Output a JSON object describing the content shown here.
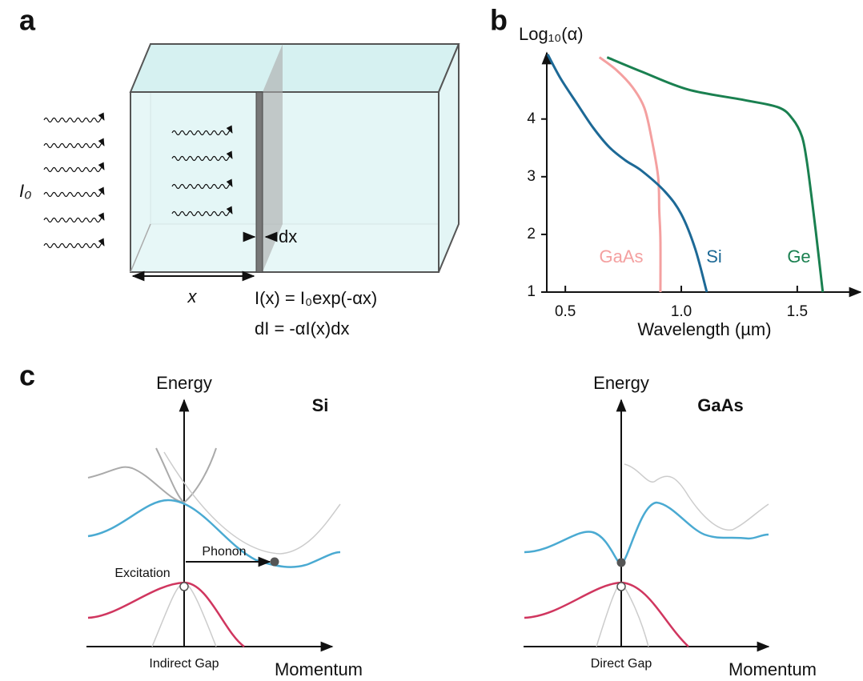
{
  "panel_a": {
    "label": "a",
    "intensity": "I₀",
    "slice": "dx",
    "depth": "x",
    "equations": [
      "I(x) = I₀exp(-αx)",
      "dI = -αI(x)dx"
    ]
  },
  "chart_data": {
    "type": "line",
    "panel_label": "b",
    "xlabel": "Wavelength (µm)",
    "ylabel": "Log₁₀(α)",
    "xlim": [
      0.42,
      1.78
    ],
    "ylim": [
      1,
      5.12
    ],
    "xticks": [
      0.5,
      {
        "value": 1,
        "label": "1.0"
      },
      1.5
    ],
    "yticks": [
      1,
      2,
      3,
      4
    ],
    "series": [
      {
        "name": "GaAs",
        "color": "#f4a0a0",
        "x": [
          0.647,
          0.72,
          0.79,
          0.84,
          0.87,
          0.9,
          0.905,
          0.91,
          0.91
        ],
        "values": [
          5.07,
          4.85,
          4.55,
          4.2,
          3.7,
          3.0,
          2.4,
          1.9,
          1
        ]
      },
      {
        "name": "Si",
        "color": "#1d6996",
        "x": [
          0.424,
          0.48,
          0.55,
          0.62,
          0.69,
          0.76,
          0.83,
          0.93,
          1.0,
          1.06,
          1.11
        ],
        "values": [
          5.12,
          4.7,
          4.27,
          3.85,
          3.51,
          3.28,
          3.1,
          2.74,
          2.35,
          1.75,
          1
        ]
      },
      {
        "name": "Ge",
        "color": "#1a8050",
        "x": [
          0.68,
          0.83,
          1.03,
          1.27,
          1.42,
          1.48,
          1.52,
          1.54,
          1.56,
          1.58,
          1.61
        ],
        "values": [
          5.07,
          4.82,
          4.51,
          4.33,
          4.2,
          4.0,
          3.7,
          3.3,
          2.7,
          2.05,
          1
        ]
      }
    ]
  },
  "panel_c": {
    "label": "c",
    "left": {
      "title": "Si",
      "y_axis": "Energy",
      "x_axis": "Momentum",
      "transition": "Excitation",
      "phonon": "Phonon",
      "gap": "Indirect Gap"
    },
    "right": {
      "title": "GaAs",
      "y_axis": "Energy",
      "x_axis": "Momentum",
      "gap": "Direct Gap"
    }
  }
}
